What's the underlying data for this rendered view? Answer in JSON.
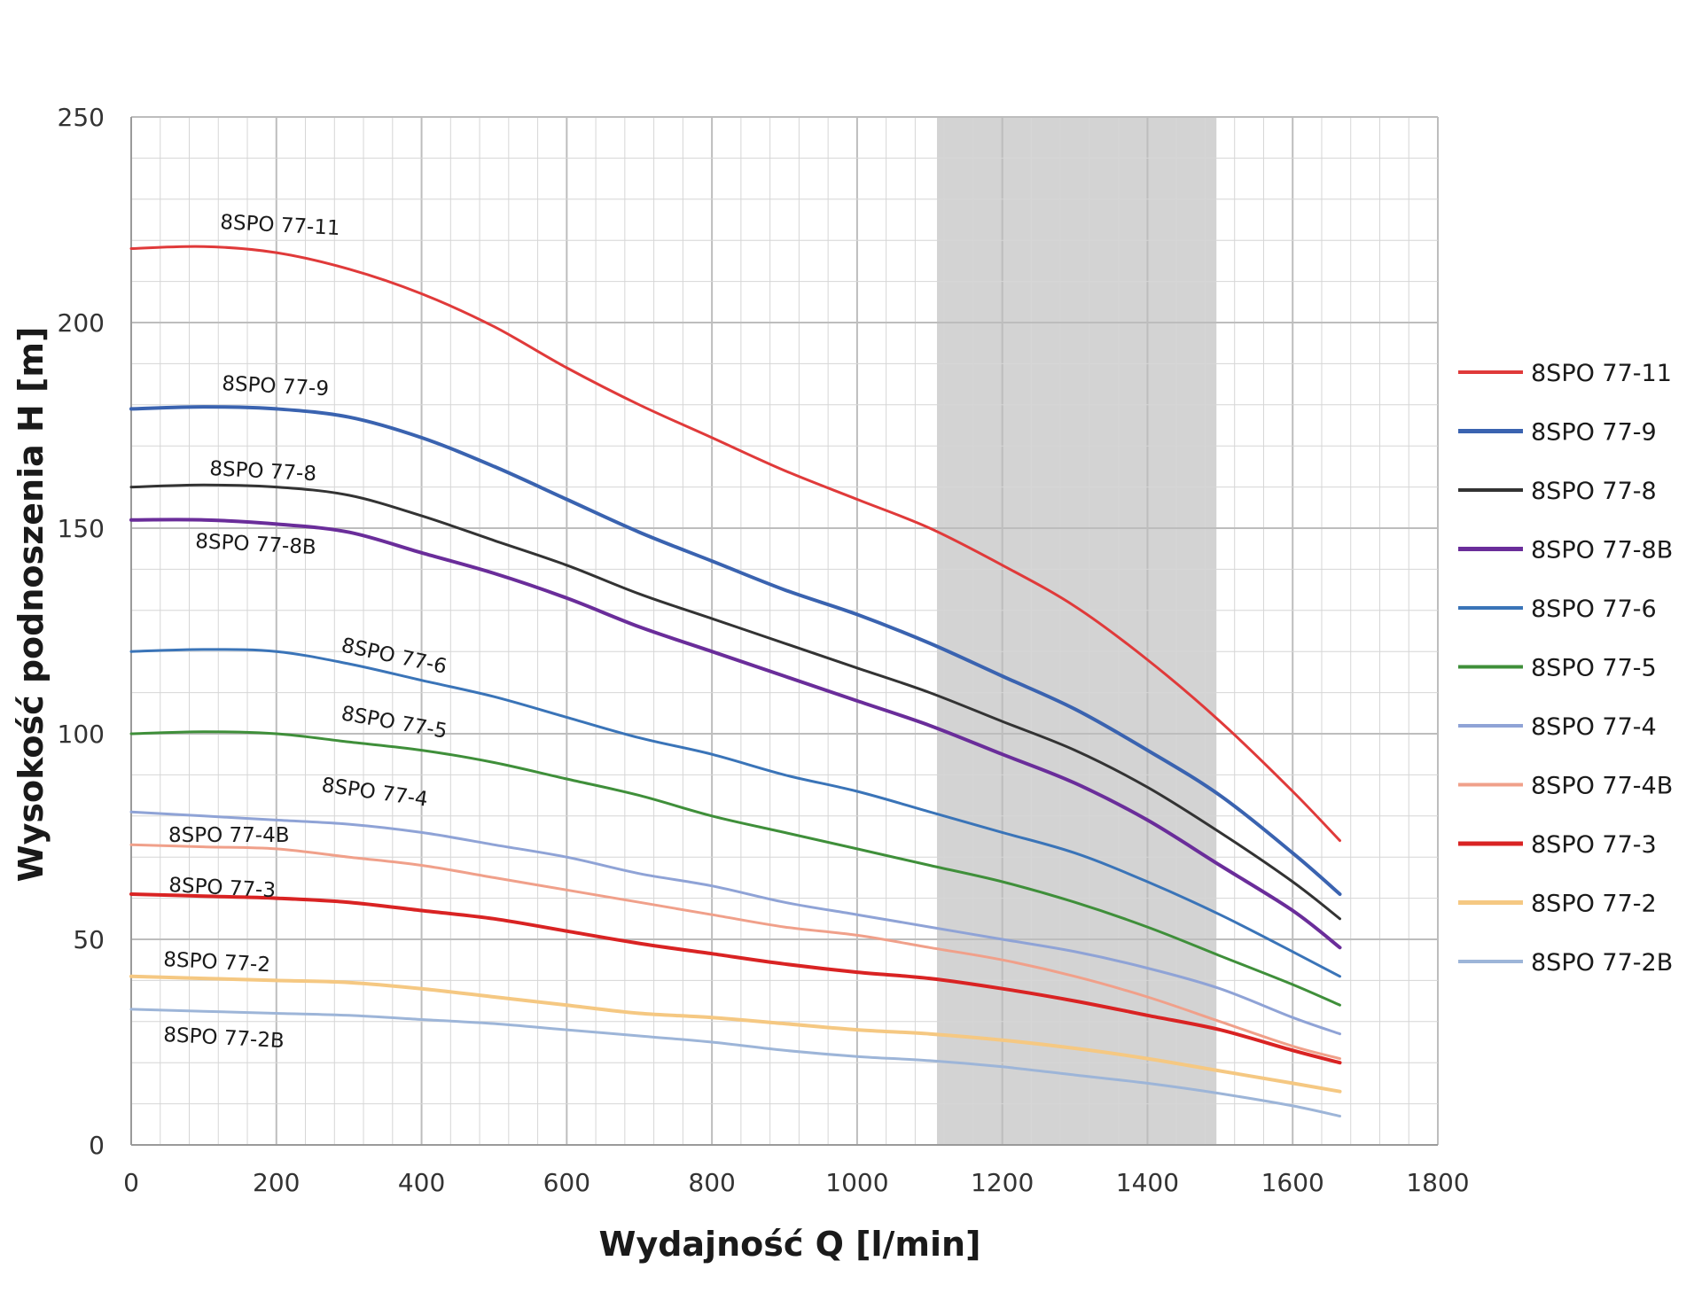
{
  "chart_data": {
    "type": "line",
    "xlabel": "Wydajność Q [l/min]",
    "ylabel": "Wysokość podnoszenia H [m]",
    "xlim": [
      0,
      1800
    ],
    "ylim": [
      0,
      250
    ],
    "x_ticks": [
      0,
      200,
      400,
      600,
      800,
      1000,
      1200,
      1400,
      1600,
      1800
    ],
    "y_ticks": [
      0,
      50,
      100,
      150,
      200,
      250
    ],
    "grid": true,
    "legend_position": "right",
    "shaded_region": {
      "x_from": 1110,
      "x_to": 1495,
      "color": "#d3d3d3"
    },
    "series": [
      {
        "name": "8SPO 77-11",
        "color": "#e03a3a",
        "width": 3,
        "label": "8SPO 77-11",
        "x": [
          0,
          100,
          200,
          300,
          400,
          500,
          600,
          700,
          800,
          900,
          1000,
          1100,
          1200,
          1300,
          1400,
          1500,
          1600,
          1665
        ],
        "y": [
          218,
          218.5,
          217,
          213,
          207,
          199,
          189,
          180,
          172,
          164,
          157,
          150,
          141,
          131,
          118,
          103,
          86,
          74
        ]
      },
      {
        "name": "8SPO 77-9",
        "color": "#3a63b0",
        "width": 4,
        "label": "8SPO 77-9",
        "x": [
          0,
          100,
          200,
          300,
          400,
          500,
          600,
          700,
          800,
          900,
          1000,
          1100,
          1200,
          1300,
          1400,
          1500,
          1600,
          1665
        ],
        "y": [
          179,
          179.5,
          179,
          177,
          172,
          165,
          157,
          149,
          142,
          135,
          129,
          122,
          114,
          106,
          96,
          85,
          71,
          61
        ]
      },
      {
        "name": "8SPO 77-8",
        "color": "#333333",
        "width": 3,
        "label": "8SPO 77-8",
        "x": [
          0,
          100,
          200,
          300,
          400,
          500,
          600,
          700,
          800,
          900,
          1000,
          1100,
          1200,
          1300,
          1400,
          1500,
          1600,
          1665
        ],
        "y": [
          160,
          160.5,
          160,
          158,
          153,
          147,
          141,
          134,
          128,
          122,
          116,
          110,
          103,
          96,
          87,
          76,
          64,
          55
        ]
      },
      {
        "name": "8SPO 77-8B",
        "color": "#6a2d9a",
        "width": 4,
        "label": "8SPO 77-8B",
        "x": [
          0,
          100,
          200,
          300,
          400,
          500,
          600,
          700,
          800,
          900,
          1000,
          1100,
          1200,
          1300,
          1400,
          1500,
          1600,
          1665
        ],
        "y": [
          152,
          152,
          151,
          149,
          144,
          139,
          133,
          126,
          120,
          114,
          108,
          102,
          95,
          88,
          79,
          68,
          57,
          48
        ]
      },
      {
        "name": "8SPO 77-6",
        "color": "#3a74b8",
        "width": 3,
        "label": "8SPO 77-6",
        "x": [
          0,
          100,
          200,
          300,
          400,
          500,
          600,
          700,
          800,
          900,
          1000,
          1100,
          1200,
          1300,
          1400,
          1500,
          1600,
          1665
        ],
        "y": [
          120,
          120.5,
          120,
          117,
          113,
          109,
          104,
          99,
          95,
          90,
          86,
          81,
          76,
          71,
          64,
          56,
          47,
          41
        ]
      },
      {
        "name": "8SPO 77-5",
        "color": "#3f8f3a",
        "width": 3,
        "label": "8SPO 77-5",
        "x": [
          0,
          100,
          200,
          300,
          400,
          500,
          600,
          700,
          800,
          900,
          1000,
          1100,
          1200,
          1300,
          1400,
          1500,
          1600,
          1665
        ],
        "y": [
          100,
          100.5,
          100,
          98,
          96,
          93,
          89,
          85,
          80,
          76,
          72,
          68,
          64,
          59,
          53,
          46,
          39,
          34
        ]
      },
      {
        "name": "8SPO 77-4",
        "color": "#8fa3d6",
        "width": 3,
        "label": "8SPO 77-4",
        "x": [
          0,
          100,
          200,
          300,
          400,
          500,
          600,
          700,
          800,
          900,
          1000,
          1100,
          1200,
          1300,
          1400,
          1500,
          1600,
          1665
        ],
        "y": [
          81,
          80,
          79,
          78,
          76,
          73,
          70,
          66,
          63,
          59,
          56,
          53,
          50,
          47,
          43,
          38,
          31,
          27
        ]
      },
      {
        "name": "8SPO 77-4B",
        "color": "#f0a08a",
        "width": 3,
        "label": "8SPO 77-4B",
        "x": [
          0,
          100,
          200,
          300,
          400,
          500,
          600,
          700,
          800,
          900,
          1000,
          1100,
          1200,
          1300,
          1400,
          1500,
          1600,
          1665
        ],
        "y": [
          73,
          72.5,
          72,
          70,
          68,
          65,
          62,
          59,
          56,
          53,
          51,
          48,
          45,
          41,
          36,
          30,
          24,
          21
        ]
      },
      {
        "name": "8SPO 77-3",
        "color": "#d92323",
        "width": 4,
        "label": "8SPO 77-3",
        "x": [
          0,
          100,
          200,
          300,
          400,
          500,
          600,
          700,
          800,
          900,
          1000,
          1100,
          1200,
          1300,
          1400,
          1500,
          1600,
          1665
        ],
        "y": [
          61,
          60.5,
          60,
          59,
          57,
          55,
          52,
          49,
          46.5,
          44,
          42,
          40.5,
          38,
          35,
          31.5,
          28,
          23,
          20
        ]
      },
      {
        "name": "8SPO 77-2",
        "color": "#f5c882",
        "width": 4,
        "label": "8SPO 77-2",
        "x": [
          0,
          100,
          200,
          300,
          400,
          500,
          600,
          700,
          800,
          900,
          1000,
          1100,
          1200,
          1300,
          1400,
          1500,
          1600,
          1665
        ],
        "y": [
          41,
          40.5,
          40,
          39.5,
          38,
          36,
          34,
          32,
          31,
          29.5,
          28,
          27,
          25.5,
          23.5,
          21,
          18,
          15,
          13
        ]
      },
      {
        "name": "8SPO 77-2B",
        "color": "#9db5d8",
        "width": 3,
        "label": "8SPO 77-2B",
        "x": [
          0,
          100,
          200,
          300,
          400,
          500,
          600,
          700,
          800,
          900,
          1000,
          1100,
          1200,
          1300,
          1400,
          1500,
          1600,
          1665
        ],
        "y": [
          33,
          32.5,
          32,
          31.5,
          30.5,
          29.5,
          28,
          26.5,
          25,
          23,
          21.5,
          20.5,
          19,
          17,
          15,
          12.5,
          9.5,
          7
        ]
      }
    ]
  }
}
